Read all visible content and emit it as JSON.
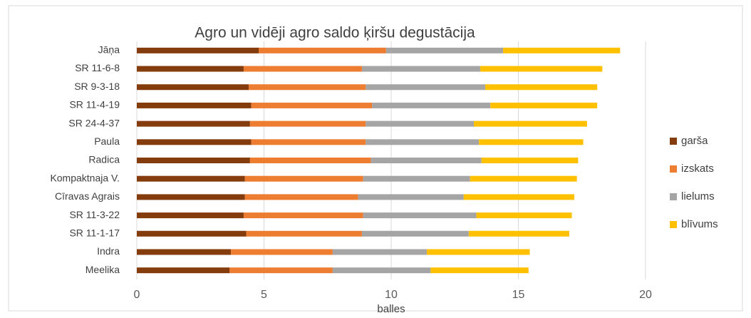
{
  "chart_data": {
    "type": "stacked_bar_horizontal",
    "title": "Agro un vidēji agro saldo ķiršu degustācija",
    "x_label": "balles",
    "categories": [
      "Jāņa",
      "SR 11-6-8",
      "SR 9-3-18",
      "SR 11-4-19",
      "SR 24-4-37",
      "Paula",
      "Radica",
      "Kompaktnaja V.",
      "Cīravas Agrais",
      "SR 11-3-22",
      "SR 11-1-17",
      "Indra",
      "Meelika"
    ],
    "series": [
      {
        "name": "garša",
        "color": "#843c0c",
        "values": [
          4.8,
          4.2,
          4.4,
          4.5,
          4.45,
          4.5,
          4.45,
          4.25,
          4.25,
          4.2,
          4.3,
          3.7,
          3.65
        ]
      },
      {
        "name": "izskats",
        "color": "#ed7d31",
        "values": [
          5.0,
          4.65,
          4.6,
          4.75,
          4.55,
          4.5,
          4.75,
          4.65,
          4.45,
          4.7,
          4.55,
          4.0,
          4.05
        ]
      },
      {
        "name": "lielums",
        "color": "#a5a5a5",
        "values": [
          4.6,
          4.65,
          4.7,
          4.65,
          4.25,
          4.45,
          4.35,
          4.2,
          4.15,
          4.45,
          4.2,
          3.7,
          3.85
        ]
      },
      {
        "name": "blīvums",
        "color": "#ffc000",
        "values": [
          4.6,
          4.8,
          4.4,
          4.2,
          4.45,
          4.1,
          3.8,
          4.2,
          4.35,
          3.75,
          3.95,
          4.05,
          3.85
        ]
      }
    ],
    "xlim": [
      0,
      20
    ],
    "xticks": [
      0,
      5,
      10,
      15,
      20
    ],
    "grid": true,
    "legend": "right"
  }
}
